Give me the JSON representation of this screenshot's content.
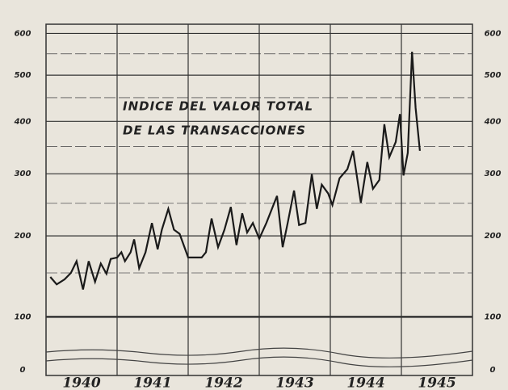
{
  "chart_data": {
    "type": "line",
    "title": [
      "INDICE DEL VALOR TOTAL",
      "DE LAS TRANSACCIONES"
    ],
    "yscale": "sqrt",
    "ylim": [
      80,
      640
    ],
    "yticks": [
      0,
      100,
      200,
      300,
      400,
      500,
      600
    ],
    "minor_grid": [
      150,
      250,
      350,
      450,
      550
    ],
    "xlim": [
      1940,
      1946
    ],
    "xgrid": [
      1941,
      1942,
      1943,
      1944,
      1945
    ],
    "xticks": [
      {
        "value": 1940.5,
        "label": "1940"
      },
      {
        "value": 1941.5,
        "label": "1941"
      },
      {
        "value": 1942.5,
        "label": "1942"
      },
      {
        "value": 1943.5,
        "label": "1943"
      },
      {
        "value": 1944.5,
        "label": "1944"
      },
      {
        "value": 1945.5,
        "label": "1945"
      }
    ],
    "grid": true,
    "color": "#1a1a1a",
    "x": [
      1940.06,
      1940.15,
      1940.26,
      1940.35,
      1940.43,
      1940.52,
      1940.6,
      1940.69,
      1940.77,
      1940.85,
      1940.91,
      1941.0,
      1941.06,
      1941.11,
      1941.19,
      1941.24,
      1941.31,
      1941.4,
      1941.49,
      1941.57,
      1941.63,
      1941.72,
      1941.8,
      1941.88,
      1942.0,
      1942.08,
      1942.19,
      1942.25,
      1942.33,
      1942.42,
      1942.51,
      1942.6,
      1942.68,
      1942.76,
      1942.83,
      1942.91,
      1943.0,
      1943.1,
      1943.25,
      1943.33,
      1943.4,
      1943.49,
      1943.56,
      1943.65,
      1943.74,
      1943.81,
      1943.88,
      1943.97,
      1944.03,
      1944.13,
      1944.24,
      1944.32,
      1944.43,
      1944.52,
      1944.6,
      1944.69,
      1944.76,
      1944.83,
      1944.92,
      1944.98,
      1945.03,
      1945.09,
      1945.15,
      1945.2,
      1945.26
    ],
    "values": [
      145,
      136,
      142,
      150,
      165,
      130,
      165,
      139,
      162,
      149,
      168,
      170,
      177,
      165,
      177,
      195,
      156,
      177,
      219,
      181,
      209,
      241,
      209,
      203,
      170,
      170,
      170,
      177,
      226,
      184,
      209,
      244,
      187,
      234,
      205,
      219,
      196,
      219,
      262,
      184,
      219,
      271,
      216,
      219,
      299,
      241,
      281,
      266,
      247,
      292,
      308,
      342,
      251,
      321,
      274,
      289,
      394,
      330,
      359,
      415,
      297,
      338,
      555,
      428,
      342
    ]
  }
}
